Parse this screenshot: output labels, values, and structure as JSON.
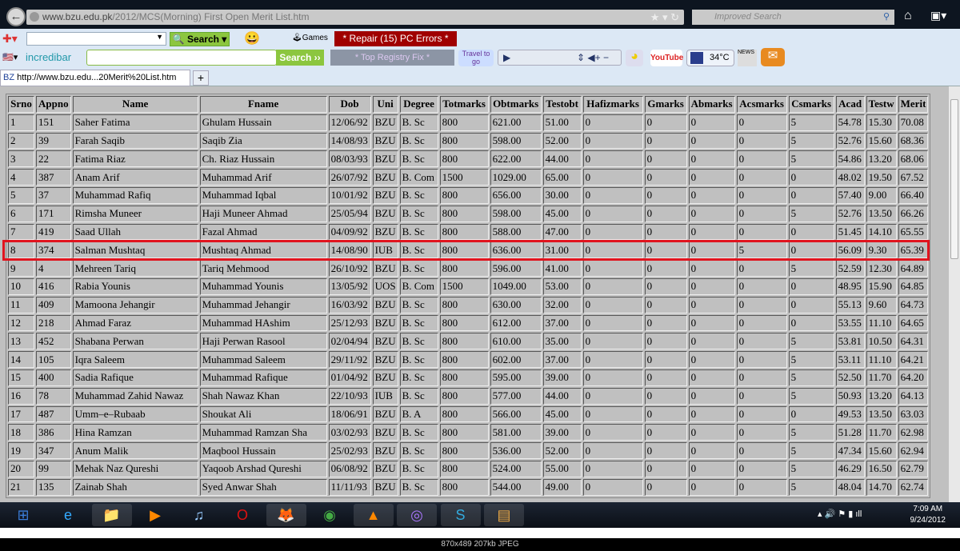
{
  "browser": {
    "url_domain": "www.bzu.edu.pk",
    "url_path": "/2012/MCS(Morning) First Open Merit List.htm",
    "search_placeholder": "Improved Search",
    "tab_title": "http://www.bzu.edu...20Merit%20List.htm",
    "tab_favicon": "BZ",
    "new_tab": "+"
  },
  "toolbar": {
    "search_label": "Search",
    "games_label": "Games",
    "repair_label": "* Repair (15) PC Errors *",
    "brand": "incredibar",
    "search2_label": "Search ››",
    "registry_label": "* Top Registry Fix *",
    "travel_label": "Travel to go",
    "youtube_label": "YouTube",
    "weather": "34°C",
    "news_label": "NEWS",
    "accent_red": "#a00000",
    "accent_green": "#8cc63f"
  },
  "table": {
    "headers": [
      "Srno",
      "Appno",
      "Name",
      "Fname",
      "Dob",
      "Uni",
      "Degree",
      "Totmarks",
      "Obtmarks",
      "Testobt",
      "Hafizmarks",
      "Gmarks",
      "Abmarks",
      "Acsmarks",
      "Csmarks",
      "Acad",
      "Testw",
      "Merit"
    ],
    "rows": [
      [
        "1",
        "151",
        "Saher Fatima",
        "Ghulam Hussain",
        "12/06/92",
        "BZU",
        "B. Sc",
        "800",
        "621.00",
        "51.00",
        "0",
        "0",
        "0",
        "0",
        "5",
        "54.78",
        "15.30",
        "70.08"
      ],
      [
        "2",
        "39",
        "Farah Saqib",
        "Saqib Zia",
        "14/08/93",
        "BZU",
        "B. Sc",
        "800",
        "598.00",
        "52.00",
        "0",
        "0",
        "0",
        "0",
        "5",
        "52.76",
        "15.60",
        "68.36"
      ],
      [
        "3",
        "22",
        "Fatima Riaz",
        "Ch. Riaz Hussain",
        "08/03/93",
        "BZU",
        "B. Sc",
        "800",
        "622.00",
        "44.00",
        "0",
        "0",
        "0",
        "0",
        "5",
        "54.86",
        "13.20",
        "68.06"
      ],
      [
        "4",
        "387",
        "Anam Arif",
        "Muhammad Arif",
        "26/07/92",
        "BZU",
        "B. Com",
        "1500",
        "1029.00",
        "65.00",
        "0",
        "0",
        "0",
        "0",
        "0",
        "48.02",
        "19.50",
        "67.52"
      ],
      [
        "5",
        "37",
        "Muhammad Rafiq",
        "Muhammad Iqbal",
        "10/01/92",
        "BZU",
        "B. Sc",
        "800",
        "656.00",
        "30.00",
        "0",
        "0",
        "0",
        "0",
        "0",
        "57.40",
        "9.00",
        "66.40"
      ],
      [
        "6",
        "171",
        "Rimsha Muneer",
        "Haji Muneer Ahmad",
        "25/05/94",
        "BZU",
        "B. Sc",
        "800",
        "598.00",
        "45.00",
        "0",
        "0",
        "0",
        "0",
        "5",
        "52.76",
        "13.50",
        "66.26"
      ],
      [
        "7",
        "419",
        "Saad Ullah",
        "Fazal Ahmad",
        "04/09/92",
        "BZU",
        "B. Sc",
        "800",
        "588.00",
        "47.00",
        "0",
        "0",
        "0",
        "0",
        "0",
        "51.45",
        "14.10",
        "65.55"
      ],
      [
        "8",
        "374",
        "Salman Mushtaq",
        "Mushtaq Ahmad",
        "14/08/90",
        "IUB",
        "B. Sc",
        "800",
        "636.00",
        "31.00",
        "0",
        "0",
        "0",
        "5",
        "0",
        "56.09",
        "9.30",
        "65.39"
      ],
      [
        "9",
        "4",
        "Mehreen Tariq",
        "Tariq Mehmood",
        "26/10/92",
        "BZU",
        "B. Sc",
        "800",
        "596.00",
        "41.00",
        "0",
        "0",
        "0",
        "0",
        "5",
        "52.59",
        "12.30",
        "64.89"
      ],
      [
        "10",
        "416",
        "Rabia Younis",
        "Muhammad Younis",
        "13/05/92",
        "UOS",
        "B. Com",
        "1500",
        "1049.00",
        "53.00",
        "0",
        "0",
        "0",
        "0",
        "0",
        "48.95",
        "15.90",
        "64.85"
      ],
      [
        "11",
        "409",
        "Mamoona Jehangir",
        "Muhammad Jehangir",
        "16/03/92",
        "BZU",
        "B. Sc",
        "800",
        "630.00",
        "32.00",
        "0",
        "0",
        "0",
        "0",
        "0",
        "55.13",
        "9.60",
        "64.73"
      ],
      [
        "12",
        "218",
        "Ahmad Faraz",
        "Muhammad HAshim",
        "25/12/93",
        "BZU",
        "B. Sc",
        "800",
        "612.00",
        "37.00",
        "0",
        "0",
        "0",
        "0",
        "0",
        "53.55",
        "11.10",
        "64.65"
      ],
      [
        "13",
        "452",
        "Shabana Perwan",
        "Haji Perwan Rasool",
        "02/04/94",
        "BZU",
        "B. Sc",
        "800",
        "610.00",
        "35.00",
        "0",
        "0",
        "0",
        "0",
        "5",
        "53.81",
        "10.50",
        "64.31"
      ],
      [
        "14",
        "105",
        "Iqra Saleem",
        "Muhammad Saleem",
        "29/11/92",
        "BZU",
        "B. Sc",
        "800",
        "602.00",
        "37.00",
        "0",
        "0",
        "0",
        "0",
        "5",
        "53.11",
        "11.10",
        "64.21"
      ],
      [
        "15",
        "400",
        "Sadia Rafique",
        "Muhammad Rafique",
        "01/04/92",
        "BZU",
        "B. Sc",
        "800",
        "595.00",
        "39.00",
        "0",
        "0",
        "0",
        "0",
        "5",
        "52.50",
        "11.70",
        "64.20"
      ],
      [
        "16",
        "78",
        "Muhammad Zahid Nawaz",
        "Shah Nawaz Khan",
        "22/10/93",
        "IUB",
        "B. Sc",
        "800",
        "577.00",
        "44.00",
        "0",
        "0",
        "0",
        "0",
        "5",
        "50.93",
        "13.20",
        "64.13"
      ],
      [
        "17",
        "487",
        "Umm–e–Rubaab",
        "Shoukat Ali",
        "18/06/91",
        "BZU",
        "B. A",
        "800",
        "566.00",
        "45.00",
        "0",
        "0",
        "0",
        "0",
        "0",
        "49.53",
        "13.50",
        "63.03"
      ],
      [
        "18",
        "386",
        "Hina Ramzan",
        "Muhammad Ramzan Sha",
        "03/02/93",
        "BZU",
        "B. Sc",
        "800",
        "581.00",
        "39.00",
        "0",
        "0",
        "0",
        "0",
        "5",
        "51.28",
        "11.70",
        "62.98"
      ],
      [
        "19",
        "347",
        "Anum Malik",
        "Maqbool Hussain",
        "25/02/93",
        "BZU",
        "B. Sc",
        "800",
        "536.00",
        "52.00",
        "0",
        "0",
        "0",
        "0",
        "5",
        "47.34",
        "15.60",
        "62.94"
      ],
      [
        "20",
        "99",
        "Mehak Naz Qureshi",
        "Yaqoob Arshad Qureshi",
        "06/08/92",
        "BZU",
        "B. Sc",
        "800",
        "524.00",
        "55.00",
        "0",
        "0",
        "0",
        "0",
        "5",
        "46.29",
        "16.50",
        "62.79"
      ],
      [
        "21",
        "135",
        "Zainab Shah",
        "Syed Anwar Shah",
        "11/11/93",
        "BZU",
        "B. Sc",
        "800",
        "544.00",
        "49.00",
        "0",
        "0",
        "0",
        "0",
        "5",
        "48.04",
        "14.70",
        "62.74"
      ]
    ],
    "highlight_color": "#e0141e"
  },
  "taskbar": {
    "apps": [
      "start",
      "internet-explorer",
      "file-explorer",
      "media-player",
      "itunes",
      "opera",
      "firefox",
      "chrome",
      "vlc",
      "bittorrent",
      "skype",
      "winrar"
    ],
    "time": "7:09 AM",
    "date": "9/24/2012"
  },
  "footer": {
    "image_info": "870x489  207kb  JPEG"
  }
}
